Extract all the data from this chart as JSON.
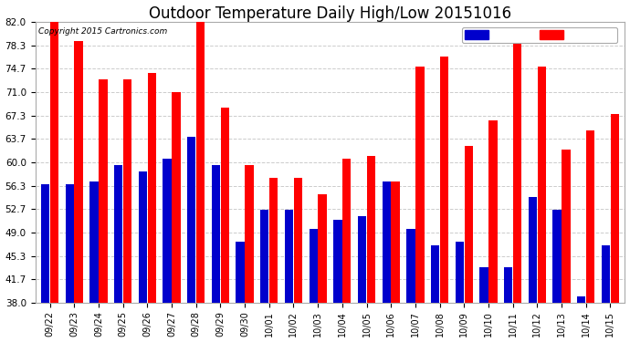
{
  "title": "Outdoor Temperature Daily High/Low 20151016",
  "copyright": "Copyright 2015 Cartronics.com",
  "dates": [
    "09/22",
    "09/23",
    "09/24",
    "09/25",
    "09/26",
    "09/27",
    "09/28",
    "09/29",
    "09/30",
    "10/01",
    "10/02",
    "10/03",
    "10/04",
    "10/05",
    "10/06",
    "10/07",
    "10/08",
    "10/09",
    "10/10",
    "10/11",
    "10/12",
    "10/13",
    "10/14",
    "10/15"
  ],
  "high": [
    82.0,
    79.0,
    73.0,
    73.0,
    74.0,
    71.0,
    82.0,
    68.5,
    59.5,
    57.5,
    57.5,
    55.0,
    60.5,
    61.0,
    57.0,
    75.0,
    76.5,
    62.5,
    66.5,
    79.0,
    75.0,
    62.0,
    65.0,
    67.5
  ],
  "low": [
    56.5,
    56.5,
    57.0,
    59.5,
    58.5,
    60.5,
    64.0,
    59.5,
    47.5,
    52.5,
    52.5,
    49.5,
    51.0,
    51.5,
    57.0,
    49.5,
    47.0,
    47.5,
    43.5,
    43.5,
    54.5,
    52.5,
    39.0,
    47.0
  ],
  "high_color": "#ff0000",
  "low_color": "#0000cc",
  "bg_color": "#ffffff",
  "grid_color": "#cccccc",
  "yticks": [
    38.0,
    41.7,
    45.3,
    49.0,
    52.7,
    56.3,
    60.0,
    63.7,
    67.3,
    71.0,
    74.7,
    78.3,
    82.0
  ],
  "ylim": [
    38.0,
    82.0
  ],
  "ybase": 38.0,
  "title_fontsize": 12,
  "bar_width": 0.35,
  "bar_gap": 0.02
}
